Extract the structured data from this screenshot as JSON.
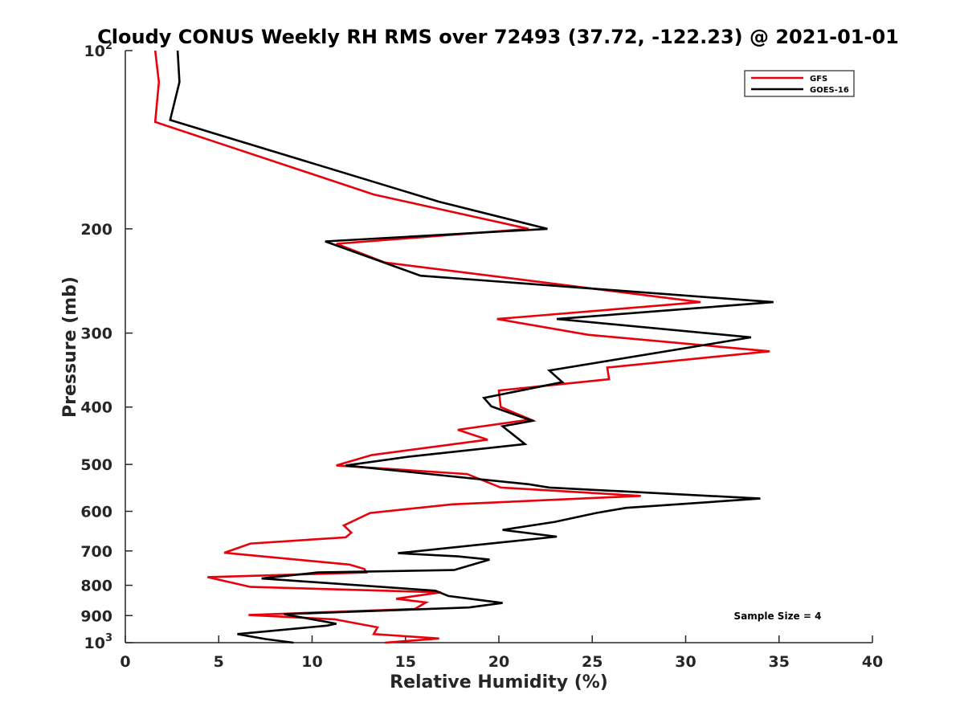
{
  "chart_data": {
    "type": "line",
    "title": "Cloudy CONUS Weekly RH RMS over 72493 (37.72, -122.23) @ 2021-01-01",
    "xlabel": "Relative Humidity (%)",
    "ylabel": "Pressure (mb)",
    "xlim": [
      0,
      40
    ],
    "ylim": [
      100,
      1000
    ],
    "y_scale": "log",
    "y_reversed": true,
    "x_ticks": [
      "0",
      "5",
      "10",
      "15",
      "20",
      "25",
      "30",
      "35",
      "40"
    ],
    "y_ticks": [
      {
        "value": 100,
        "base": "10",
        "exp": "2"
      },
      {
        "value": 200,
        "label": "200"
      },
      {
        "value": 300,
        "label": "300"
      },
      {
        "value": 400,
        "label": "400"
      },
      {
        "value": 500,
        "label": "500"
      },
      {
        "value": 600,
        "label": "600"
      },
      {
        "value": 700,
        "label": "700"
      },
      {
        "value": 800,
        "label": "800"
      },
      {
        "value": 900,
        "label": "900"
      },
      {
        "value": 1000,
        "base": "10",
        "exp": "3"
      }
    ],
    "grid": false,
    "legend_position": "top-right",
    "annotation": "Sample Size = 4",
    "series": [
      {
        "name": "GFS",
        "color": "#e8000b",
        "points": [
          [
            1.6,
            100
          ],
          [
            1.8,
            113
          ],
          [
            1.6,
            132
          ],
          [
            13.3,
            175
          ],
          [
            21.6,
            200
          ],
          [
            11.3,
            212
          ],
          [
            13.9,
            228
          ],
          [
            30.8,
            266
          ],
          [
            19.9,
            284
          ],
          [
            24.8,
            302
          ],
          [
            34.5,
            322
          ],
          [
            25.8,
            343
          ],
          [
            25.9,
            359
          ],
          [
            20.0,
            375
          ],
          [
            20.1,
            400
          ],
          [
            21.7,
            420
          ],
          [
            17.8,
            437
          ],
          [
            19.4,
            454
          ],
          [
            13.2,
            482
          ],
          [
            11.3,
            502
          ],
          [
            18.3,
            519
          ],
          [
            20.1,
            547
          ],
          [
            27.6,
            565
          ],
          [
            17.5,
            584
          ],
          [
            13.1,
            604
          ],
          [
            11.7,
            634
          ],
          [
            12.1,
            652
          ],
          [
            11.8,
            664
          ],
          [
            6.7,
            680
          ],
          [
            5.3,
            705
          ],
          [
            12.0,
            738
          ],
          [
            12.8,
            751
          ],
          [
            12.9,
            761
          ],
          [
            4.4,
            775
          ],
          [
            6.7,
            805
          ],
          [
            16.9,
            822
          ],
          [
            14.5,
            843
          ],
          [
            16.1,
            855
          ],
          [
            15.5,
            877
          ],
          [
            6.6,
            898
          ],
          [
            11.2,
            913
          ],
          [
            13.5,
            942
          ],
          [
            13.3,
            967
          ],
          [
            16.8,
            984
          ],
          [
            13.9,
            1000
          ]
        ]
      },
      {
        "name": "GOES-16",
        "color": "#000000",
        "points": [
          [
            2.8,
            100
          ],
          [
            2.9,
            113
          ],
          [
            2.4,
            131
          ],
          [
            16.8,
            180
          ],
          [
            22.6,
            200
          ],
          [
            10.7,
            210
          ],
          [
            15.8,
            240
          ],
          [
            34.7,
            266
          ],
          [
            23.1,
            284
          ],
          [
            33.5,
            305
          ],
          [
            22.7,
            347
          ],
          [
            23.4,
            363
          ],
          [
            19.2,
            386
          ],
          [
            19.6,
            399
          ],
          [
            21.8,
            422
          ],
          [
            20.2,
            431
          ],
          [
            21.4,
            462
          ],
          [
            15.2,
            485
          ],
          [
            11.8,
            502
          ],
          [
            21.6,
            540
          ],
          [
            22.7,
            547
          ],
          [
            34.0,
            571
          ],
          [
            26.8,
            592
          ],
          [
            25.2,
            604
          ],
          [
            23.0,
            625
          ],
          [
            20.2,
            645
          ],
          [
            23.1,
            662
          ],
          [
            14.6,
            706
          ],
          [
            17.8,
            715
          ],
          [
            19.5,
            724
          ],
          [
            17.6,
            754
          ],
          [
            10.3,
            761
          ],
          [
            7.3,
            779
          ],
          [
            16.6,
            817
          ],
          [
            17.3,
            834
          ],
          [
            20.2,
            857
          ],
          [
            18.4,
            872
          ],
          [
            8.5,
            895
          ],
          [
            11.3,
            929
          ],
          [
            10.8,
            936
          ],
          [
            6.0,
            967
          ],
          [
            7.5,
            986
          ],
          [
            9.0,
            1000
          ]
        ]
      }
    ]
  }
}
